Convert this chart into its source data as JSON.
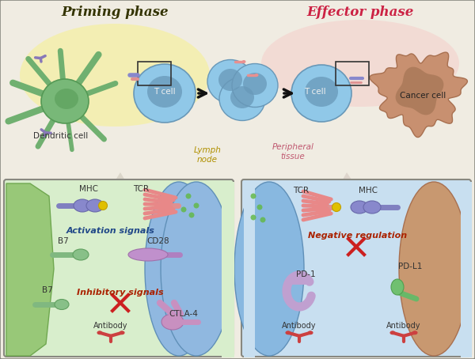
{
  "bg_color": "#e8e0d8",
  "top_bg": "#f0ece0",
  "top_left_yellow": "#f5f0b0",
  "top_right_pink": "#f5ddd8",
  "priming_label": "Priming phase",
  "effector_label": "Effector phase",
  "priming_label_color": "#333300",
  "effector_label_color": "#cc2244",
  "dendritic_label": "Dendritic cell",
  "t_cell_label": "T cell",
  "cancer_cell_label": "Cancer cell",
  "lymph_node_label": "Lymph\nnode",
  "peripheral_tissue_label": "Peripheral\ntissue",
  "left_box_bg": "#d8eecc",
  "right_box_bg": "#c8dff0",
  "left_membrane_color": "#a8cc88",
  "right_membrane_blue": "#88b8e0",
  "right_membrane_skin": "#c89870",
  "zoom_triangle_color": "#d0c8b8",
  "mhc_color": "#8888cc",
  "tcr_color": "#e88888",
  "yellow_dot_color": "#e0c000",
  "b7_color": "#88c088",
  "cd28_color": "#c090c8",
  "antibody_color": "#cc4444",
  "ctla4_color": "#c890c0",
  "pd1_color": "#c0a0cc",
  "pdl1_color": "#70c070",
  "green_dot_color": "#60b840",
  "activation_text_color": "#204888",
  "inhibitory_text_color": "#aa2200",
  "neg_reg_text_color": "#aa2200",
  "dc_body_color": "#78b878",
  "dc_nucleus_color": "#559955",
  "t_cell_outer": "#90c8e8",
  "t_cell_inner": "#6898b8",
  "cancer_outer": "#c89070",
  "cancer_inner": "#a87858"
}
